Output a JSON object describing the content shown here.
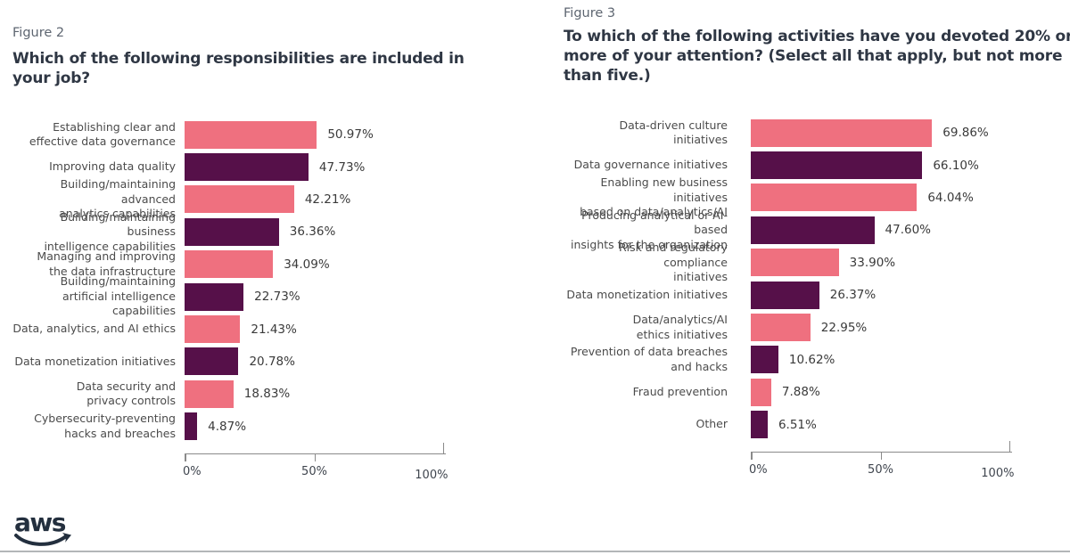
{
  "colors": {
    "bar_pink": "#ef707f",
    "bar_dark_purple": "#561049",
    "title_text": "#2f3744",
    "figure_label_text": "#5e6671",
    "category_text": "#4b4b4b",
    "value_text": "#3a3a3a",
    "axis_gray": "#8a8a8a",
    "aws_navy": "#232f3e"
  },
  "footer": {
    "logo": "aws"
  },
  "chart_data": [
    {
      "type": "bar",
      "orientation": "horizontal",
      "figure_label": "Figure 2",
      "title": "Which of the following responsibilities are included in your job?",
      "categories": [
        "Establishing clear and\neffective data governance",
        "Improving data quality",
        "Building/maintaining advanced\nanalytics capabilities",
        "Building/maintaining business\nintelligence capabilities",
        "Managing and improving\nthe data infrastructure",
        "Building/maintaining\nartificial intelligence capabilities",
        "Data, analytics, and AI ethics",
        "Data monetization initiatives",
        "Data security and\nprivacy controls",
        "Cybersecurity-preventing\nhacks and breaches"
      ],
      "values": [
        50.97,
        47.73,
        42.21,
        36.36,
        34.09,
        22.73,
        21.43,
        20.78,
        18.83,
        4.87
      ],
      "value_labels": [
        "50.97%",
        "47.73%",
        "42.21%",
        "36.36%",
        "34.09%",
        "22.73%",
        "21.43%",
        "20.78%",
        "18.83%",
        "4.87%"
      ],
      "xlim": [
        0,
        100
      ],
      "x_ticks": [
        "0%",
        "50%",
        "100%"
      ],
      "x_tick_positions": [
        0,
        50,
        100
      ],
      "bar_colors_alternate": [
        "#ef707f",
        "#561049"
      ],
      "grid": false,
      "legend": false
    },
    {
      "type": "bar",
      "orientation": "horizontal",
      "figure_label": "Figure 3",
      "title": "To which of the following activities have you devoted 20% or more of your attention? (Select all that apply, but not more than five.)",
      "categories": [
        "Data-driven culture initiatives",
        "Data governance initiatives",
        "Enabling new business initiatives\nbased on data/analytics/AI",
        "Producing analytical or AI-based\ninsights for the organization",
        "Risk and regulatory compliance\ninitiatives",
        "Data monetization initiatives",
        "Data/analytics/AI\nethics initiatives",
        "Prevention of data breaches\nand hacks",
        "Fraud prevention",
        "Other"
      ],
      "values": [
        69.86,
        66.1,
        64.04,
        47.6,
        33.9,
        26.37,
        22.95,
        10.62,
        7.88,
        6.51
      ],
      "value_labels": [
        "69.86%",
        "66.10%",
        "64.04%",
        "47.60%",
        "33.90%",
        "26.37%",
        "22.95%",
        "10.62%",
        "7.88%",
        "6.51%"
      ],
      "xlim": [
        0,
        100
      ],
      "x_ticks": [
        "0%",
        "50%",
        "100%"
      ],
      "x_tick_positions": [
        0,
        50,
        100
      ],
      "bar_colors_alternate": [
        "#ef707f",
        "#561049"
      ],
      "grid": false,
      "legend": false
    }
  ]
}
